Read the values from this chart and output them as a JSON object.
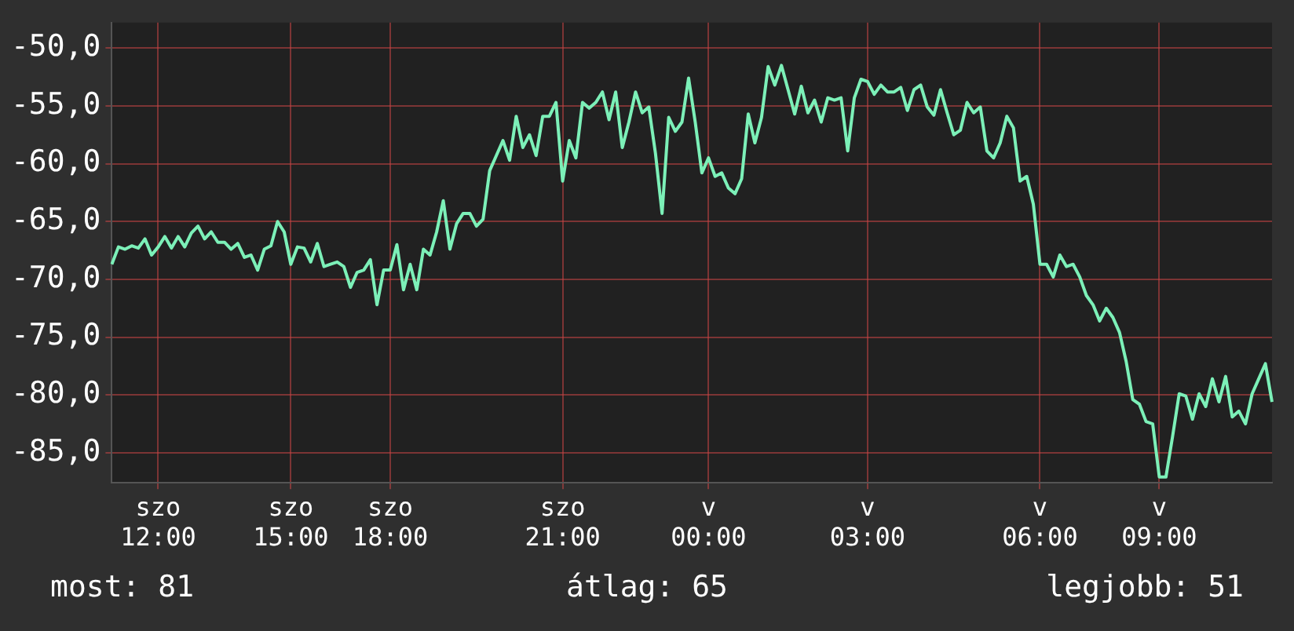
{
  "chart_data": {
    "type": "line",
    "annotations": [
      "most: 81",
      "átlag: 65",
      "legjobb: 51"
    ],
    "categories": [
      null,
      null,
      null,
      null,
      null,
      null,
      null,
      "szo 12:00",
      null,
      null,
      null,
      null,
      null,
      null,
      null,
      null,
      null,
      null,
      null,
      null,
      null,
      null,
      null,
      null,
      null,
      null,
      null,
      "szo 15:00",
      null,
      null,
      null,
      null,
      null,
      null,
      null,
      null,
      null,
      null,
      null,
      null,
      null,
      null,
      "szo 18:00",
      null,
      null,
      null,
      null,
      null,
      null,
      null,
      null,
      null,
      null,
      null,
      null,
      null,
      null,
      null,
      null,
      null,
      null,
      null,
      null,
      null,
      null,
      null,
      null,
      null,
      "szo 21:00",
      null,
      null,
      null,
      null,
      null,
      null,
      null,
      null,
      null,
      null,
      null,
      null,
      null,
      null,
      null,
      null,
      null,
      null,
      null,
      null,
      null,
      "v 00:00",
      null,
      null,
      null,
      null,
      null,
      null,
      null,
      null,
      null,
      null,
      null,
      null,
      null,
      null,
      null,
      null,
      null,
      null,
      null,
      null,
      null,
      null,
      null,
      "v 03:00",
      null,
      null,
      null,
      null,
      null,
      null,
      null,
      null,
      null,
      null,
      null,
      null,
      null,
      null,
      null,
      null,
      null,
      null,
      null,
      null,
      null,
      null,
      null,
      null,
      null,
      "v 06:00",
      null,
      null,
      null,
      null,
      null,
      null,
      null,
      null,
      null,
      null,
      null,
      null,
      null,
      null,
      null,
      null,
      null,
      "v 09:00",
      null,
      null,
      null,
      null,
      null,
      null,
      null,
      null,
      null,
      null,
      null,
      null,
      null,
      null,
      null,
      null,
      null
    ],
    "series": [
      {
        "color": "#7cf0b8",
        "values": [
          -68.7,
          -67.2,
          -67.4,
          -67.1,
          -67.3,
          -66.5,
          -67.9,
          -67.2,
          -66.3,
          -67.3,
          -66.3,
          -67.2,
          -66.0,
          -65.4,
          -66.5,
          -65.9,
          -66.8,
          -66.8,
          -67.4,
          -66.9,
          -68.1,
          -67.9,
          -69.2,
          -67.4,
          -67.1,
          -65.0,
          -65.9,
          -68.7,
          -67.2,
          -67.3,
          -68.5,
          -66.9,
          -68.9,
          -68.7,
          -68.5,
          -68.9,
          -70.7,
          -69.4,
          -69.2,
          -68.3,
          -72.2,
          -69.2,
          -69.2,
          -67.0,
          -70.9,
          -68.7,
          -70.9,
          -67.4,
          -67.9,
          -65.9,
          -63.2,
          -67.4,
          -65.2,
          -64.3,
          -64.3,
          -65.4,
          -64.8,
          -60.6,
          -59.3,
          -58.0,
          -59.7,
          -55.9,
          -58.6,
          -57.5,
          -59.3,
          -55.9,
          -55.9,
          -54.7,
          -61.5,
          -58.0,
          -59.5,
          -54.7,
          -55.2,
          -54.7,
          -53.8,
          -56.2,
          -53.8,
          -58.6,
          -56.4,
          -53.8,
          -55.6,
          -55.1,
          -59.1,
          -64.3,
          -56.0,
          -57.2,
          -56.4,
          -52.6,
          -56.4,
          -60.8,
          -59.5,
          -61.1,
          -60.8,
          -62.1,
          -62.6,
          -61.3,
          -55.7,
          -58.2,
          -56.0,
          -51.6,
          -53.2,
          -51.5,
          -53.6,
          -55.7,
          -53.3,
          -55.6,
          -54.5,
          -56.4,
          -54.3,
          -54.5,
          -54.3,
          -58.9,
          -54.3,
          -52.7,
          -52.9,
          -54.0,
          -53.2,
          -53.8,
          -53.8,
          -53.4,
          -55.4,
          -53.6,
          -53.2,
          -55.1,
          -55.8,
          -53.6,
          -55.6,
          -57.5,
          -57.1,
          -54.7,
          -55.6,
          -55.1,
          -58.9,
          -59.5,
          -58.2,
          -55.9,
          -56.9,
          -61.5,
          -61.1,
          -63.5,
          -68.7,
          -68.7,
          -69.8,
          -67.9,
          -68.9,
          -68.7,
          -69.8,
          -71.4,
          -72.2,
          -73.6,
          -72.5,
          -73.3,
          -74.6,
          -77.1,
          -80.4,
          -80.8,
          -82.3,
          -82.5,
          -87.1,
          -87.1,
          -83.6,
          -79.9,
          -80.1,
          -82.1,
          -79.9,
          -81.0,
          -78.6,
          -80.6,
          -78.4,
          -81.9,
          -81.4,
          -82.5,
          -79.9,
          -78.6,
          -77.3,
          -80.6
        ]
      }
    ],
    "ylim": [
      -87.6,
      -47.8
    ],
    "yticks": [
      {
        "value": -85,
        "label": "-85,0"
      },
      {
        "value": -80,
        "label": "-80,0"
      },
      {
        "value": -75,
        "label": "-75,0"
      },
      {
        "value": -70,
        "label": "-70,0"
      },
      {
        "value": -65,
        "label": "-65,0"
      },
      {
        "value": -60,
        "label": "-60,0"
      },
      {
        "value": -55,
        "label": "-55,0"
      },
      {
        "value": -50,
        "label": "-50,0"
      }
    ],
    "grid": true,
    "legend": false,
    "marker": "none",
    "line_style": "solid"
  }
}
